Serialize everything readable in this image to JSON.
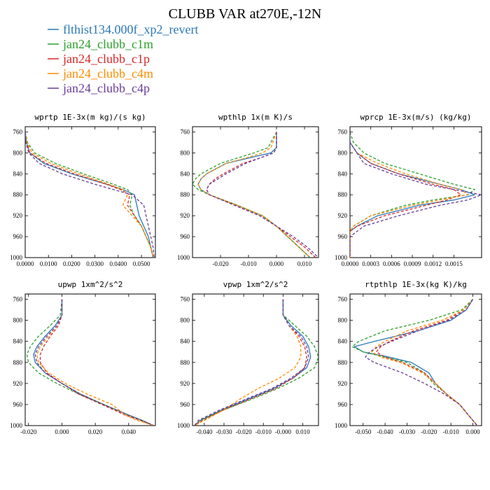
{
  "title": "CLUBB VAR at270E,-12N",
  "legend": [
    {
      "label": "flthist134.000f_xp2_revert",
      "color": "#2a78b8",
      "dash": "solid"
    },
    {
      "label": "jan24_clubb_c1m",
      "color": "#2ca02c",
      "dash": "dash"
    },
    {
      "label": "jan24_clubb_c1p",
      "color": "#d62728",
      "dash": "dash"
    },
    {
      "label": "jan24_clubb_c4m",
      "color": "#ff8c00",
      "dash": "dash"
    },
    {
      "label": "jan24_clubb_c4p",
      "color": "#6a3d9a",
      "dash": "dash"
    }
  ],
  "chart_data": [
    {
      "type": "line",
      "title": "wprtp  1E-3x(m kg)/(s kg)",
      "xlim": [
        0,
        0.056
      ],
      "xticks": [
        0.0,
        0.01,
        0.02,
        0.03,
        0.04,
        0.05
      ],
      "xtick_labels": [
        "0.0000",
        "0.0100",
        "0.0200",
        "0.0300",
        "0.0400",
        "0.0500"
      ],
      "ylim": [
        1000,
        750
      ],
      "yticks": [
        760,
        800,
        840,
        880,
        920,
        960,
        1000
      ],
      "pressure": [
        760,
        780,
        800,
        820,
        840,
        860,
        870,
        880,
        900,
        920,
        940,
        960,
        980,
        1000
      ],
      "series": [
        {
          "values": [
            0.0,
            0.0005,
            0.002,
            0.008,
            0.02,
            0.035,
            0.042,
            0.047,
            0.048,
            0.049,
            0.051,
            0.053,
            0.054,
            0.055
          ]
        },
        {
          "values": [
            0.0,
            0.001,
            0.004,
            0.013,
            0.025,
            0.038,
            0.044,
            0.046,
            0.045,
            0.047,
            0.05,
            0.052,
            0.054,
            0.055
          ]
        },
        {
          "values": [
            0.0,
            0.0005,
            0.002,
            0.009,
            0.021,
            0.035,
            0.041,
            0.045,
            0.044,
            0.047,
            0.05,
            0.052,
            0.054,
            0.055
          ]
        },
        {
          "values": [
            0.0,
            0.0007,
            0.003,
            0.011,
            0.023,
            0.036,
            0.042,
            0.044,
            0.042,
            0.046,
            0.05,
            0.052,
            0.054,
            0.055
          ]
        },
        {
          "values": [
            0.0,
            0.0003,
            0.0015,
            0.006,
            0.016,
            0.03,
            0.038,
            0.046,
            0.051,
            0.052,
            0.053,
            0.054,
            0.055,
            0.0555
          ]
        }
      ]
    },
    {
      "type": "line",
      "title": "wpthlp  1x(m K)/s",
      "xlim": [
        -0.03,
        0.015
      ],
      "xticks": [
        -0.02,
        -0.01,
        0.0,
        0.01
      ],
      "xtick_labels": [
        "-0.020",
        "-0.010",
        "0.000",
        "0.010"
      ],
      "ylim": [
        1000,
        750
      ],
      "yticks": [
        760,
        800,
        840,
        880,
        920,
        960,
        1000
      ],
      "pressure": [
        760,
        790,
        800,
        810,
        820,
        840,
        850,
        860,
        870,
        880,
        900,
        920,
        940,
        960,
        980,
        1000
      ],
      "series": [
        {
          "values": [
            0.0,
            0.0,
            -0.002,
            -0.01,
            -0.018,
            -0.025,
            -0.027,
            -0.028,
            -0.027,
            -0.024,
            -0.014,
            -0.005,
            0.0,
            0.004,
            0.008,
            0.012
          ]
        },
        {
          "values": [
            0.0,
            -0.003,
            -0.008,
            -0.014,
            -0.02,
            -0.027,
            -0.029,
            -0.03,
            -0.028,
            -0.024,
            -0.014,
            -0.005,
            0.0,
            0.004,
            0.008,
            0.012
          ]
        },
        {
          "values": [
            0.0,
            0.0,
            -0.001,
            -0.006,
            -0.012,
            -0.019,
            -0.022,
            -0.024,
            -0.025,
            -0.024,
            -0.015,
            -0.006,
            0.0,
            0.005,
            0.01,
            0.014
          ]
        },
        {
          "values": [
            0.0,
            -0.002,
            -0.005,
            -0.011,
            -0.018,
            -0.025,
            -0.027,
            -0.028,
            -0.027,
            -0.024,
            -0.014,
            -0.005,
            0.0,
            0.004,
            0.008,
            0.012
          ]
        },
        {
          "values": [
            0.0,
            0.0,
            -0.001,
            -0.006,
            -0.011,
            -0.018,
            -0.021,
            -0.024,
            -0.025,
            -0.024,
            -0.015,
            -0.006,
            0.0,
            0.006,
            0.011,
            0.015
          ]
        }
      ]
    },
    {
      "type": "line",
      "title": "wprcp  1E-3x(m/s) (kg/kg)",
      "xlim": [
        0,
        0.0019
      ],
      "xticks": [
        0.0,
        0.0003,
        0.0006,
        0.0009,
        0.0012,
        0.0015
      ],
      "xtick_labels": [
        "0.0000",
        "0.0003",
        "0.0006",
        "0.0009",
        "0.0012",
        "0.0015"
      ],
      "ylim": [
        1000,
        750
      ],
      "yticks": [
        760,
        800,
        840,
        880,
        920,
        960,
        1000
      ],
      "pressure": [
        760,
        780,
        800,
        820,
        840,
        860,
        870,
        880,
        890,
        900,
        920,
        940,
        950,
        960,
        1000
      ],
      "series": [
        {
          "values": [
            0.0,
            0.0,
            0.0001,
            0.0003,
            0.0007,
            0.0013,
            0.0016,
            0.0018,
            0.0015,
            0.001,
            0.0004,
            0.0001,
            0.0,
            0.0,
            0.0
          ]
        },
        {
          "values": [
            0.0,
            5e-05,
            0.0002,
            0.0005,
            0.001,
            0.0015,
            0.0018,
            0.0017,
            0.0012,
            0.0008,
            0.0003,
            5e-05,
            0.0,
            0.0,
            0.0
          ]
        },
        {
          "values": [
            0.0,
            0.0,
            0.0001,
            0.0003,
            0.0007,
            0.0012,
            0.0015,
            0.0016,
            0.0014,
            0.0011,
            0.0005,
            0.0001,
            0.0,
            0.0,
            0.0
          ]
        },
        {
          "values": [
            0.0,
            0.0,
            0.0001,
            0.0004,
            0.0008,
            0.0013,
            0.0016,
            0.0017,
            0.0013,
            0.0009,
            0.0003,
            5e-05,
            0.0,
            0.0,
            0.0
          ]
        },
        {
          "values": [
            0.0,
            0.0,
            0.0001,
            0.0002,
            0.0006,
            0.0011,
            0.0015,
            0.0019,
            0.0017,
            0.0013,
            0.0007,
            0.0002,
            0.0001,
            0.0,
            0.0
          ]
        }
      ]
    },
    {
      "type": "line",
      "title": "upwp  1xm^2/s^2",
      "xlim": [
        -0.022,
        0.056
      ],
      "xticks": [
        -0.02,
        0.0,
        0.02,
        0.04
      ],
      "xtick_labels": [
        "-0.020",
        "0.000",
        "0.020",
        "0.040"
      ],
      "ylim": [
        1000,
        750
      ],
      "yticks": [
        760,
        800,
        840,
        880,
        920,
        960,
        1000
      ],
      "pressure": [
        760,
        790,
        810,
        830,
        850,
        865,
        880,
        900,
        920,
        940,
        960,
        980,
        990,
        1000
      ],
      "series": [
        {
          "values": [
            0.0,
            0.0,
            -0.004,
            -0.01,
            -0.015,
            -0.017,
            -0.016,
            -0.01,
            0.0,
            0.011,
            0.025,
            0.04,
            0.048,
            0.055
          ]
        },
        {
          "values": [
            0.0,
            -0.001,
            -0.007,
            -0.014,
            -0.019,
            -0.021,
            -0.02,
            -0.014,
            -0.003,
            0.01,
            0.025,
            0.04,
            0.048,
            0.055
          ]
        },
        {
          "values": [
            0.0,
            0.0,
            -0.002,
            -0.007,
            -0.011,
            -0.013,
            -0.013,
            -0.009,
            0.0,
            0.01,
            0.024,
            0.038,
            0.047,
            0.055
          ]
        },
        {
          "values": [
            0.0,
            0.0,
            -0.003,
            -0.008,
            -0.013,
            -0.015,
            -0.014,
            -0.008,
            0.002,
            0.015,
            0.03,
            0.038,
            0.045,
            0.055
          ]
        },
        {
          "values": [
            0.0,
            0.0,
            -0.003,
            -0.009,
            -0.014,
            -0.016,
            -0.015,
            -0.01,
            0.0,
            0.011,
            0.025,
            0.04,
            0.048,
            0.055
          ]
        }
      ]
    },
    {
      "type": "line",
      "title": "vpwp  1xm^2/s^2",
      "xlim": [
        -0.046,
        0.018
      ],
      "xticks": [
        -0.04,
        -0.03,
        -0.02,
        -0.01,
        0.0,
        0.01
      ],
      "xtick_labels": [
        "-0.040",
        "-0.030",
        "-0.020",
        "-0.010",
        "-0.000",
        "0.010"
      ],
      "ylim": [
        1000,
        750
      ],
      "yticks": [
        760,
        800,
        840,
        880,
        920,
        960,
        1000
      ],
      "pressure": [
        760,
        790,
        810,
        830,
        850,
        870,
        890,
        910,
        930,
        950,
        970,
        990,
        1000
      ],
      "series": [
        {
          "values": [
            0.0,
            0.0,
            0.004,
            0.01,
            0.013,
            0.014,
            0.012,
            0.005,
            -0.005,
            -0.018,
            -0.031,
            -0.042,
            -0.045
          ]
        },
        {
          "values": [
            0.0,
            0.0,
            0.006,
            0.012,
            0.016,
            0.018,
            0.016,
            0.008,
            -0.003,
            -0.016,
            -0.03,
            -0.042,
            -0.045
          ]
        },
        {
          "values": [
            0.0,
            0.0,
            0.003,
            0.008,
            0.011,
            0.012,
            0.011,
            0.005,
            -0.004,
            -0.017,
            -0.03,
            -0.041,
            -0.045
          ]
        },
        {
          "values": [
            0.0,
            0.0,
            0.003,
            0.007,
            0.009,
            0.009,
            0.006,
            -0.002,
            -0.013,
            -0.022,
            -0.03,
            -0.04,
            -0.045
          ]
        },
        {
          "values": [
            0.0,
            0.0,
            0.003,
            0.009,
            0.012,
            0.013,
            0.011,
            0.004,
            -0.006,
            -0.019,
            -0.032,
            -0.043,
            -0.045
          ]
        }
      ]
    },
    {
      "type": "line",
      "title": "rtpthlp  1E-3x(kg K)/kg",
      "xlim": [
        -0.056,
        0.004
      ],
      "xticks": [
        -0.05,
        -0.04,
        -0.03,
        -0.02,
        -0.01,
        0.0
      ],
      "xtick_labels": [
        "-0.050",
        "-0.040",
        "-0.030",
        "-0.020",
        "-0.010",
        "0.000"
      ],
      "ylim": [
        1000,
        750
      ],
      "yticks": [
        760,
        800,
        840,
        880,
        920,
        960,
        1000
      ],
      "pressure": [
        760,
        780,
        800,
        820,
        840,
        850,
        860,
        870,
        880,
        900,
        920,
        940,
        960,
        980,
        1000
      ],
      "series": [
        {
          "values": [
            0.0,
            -0.003,
            -0.01,
            -0.025,
            -0.045,
            -0.054,
            -0.05,
            -0.038,
            -0.028,
            -0.02,
            -0.017,
            -0.012,
            -0.006,
            -0.002,
            0.002
          ]
        },
        {
          "values": [
            0.0,
            -0.005,
            -0.02,
            -0.04,
            -0.052,
            -0.055,
            -0.05,
            -0.04,
            -0.03,
            -0.022,
            -0.018,
            -0.012,
            -0.006,
            -0.002,
            0.002
          ]
        },
        {
          "values": [
            0.0,
            -0.004,
            -0.012,
            -0.027,
            -0.038,
            -0.042,
            -0.044,
            -0.04,
            -0.032,
            -0.022,
            -0.017,
            -0.012,
            -0.006,
            -0.002,
            0.002
          ]
        },
        {
          "values": [
            0.0,
            -0.004,
            -0.014,
            -0.03,
            -0.04,
            -0.044,
            -0.046,
            -0.042,
            -0.033,
            -0.023,
            -0.017,
            -0.012,
            -0.006,
            -0.002,
            0.002
          ]
        },
        {
          "values": [
            0.0,
            -0.003,
            -0.011,
            -0.025,
            -0.037,
            -0.043,
            -0.047,
            -0.049,
            -0.045,
            -0.032,
            -0.022,
            -0.013,
            -0.006,
            -0.002,
            0.002
          ]
        }
      ]
    }
  ]
}
